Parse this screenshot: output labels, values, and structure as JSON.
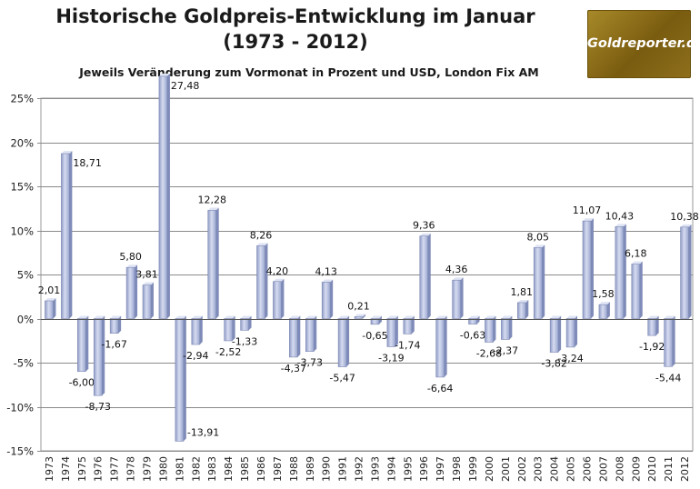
{
  "header": {
    "title_line1": "Historische Goldpreis-Entwicklung im Januar",
    "title_line2": "(1973 - 2012)",
    "subtitle": "Jeweils Veränderung zum Vormonat in Prozent und USD, London Fix AM",
    "logo_text": "Goldreporter.de"
  },
  "colors": {
    "bar_fill": "#b4bee0",
    "bar_edge": "#7d89b3",
    "logo_bg": "#8d6f1d"
  },
  "chart_data": {
    "type": "bar",
    "title": "Historische Goldpreis-Entwicklung im Januar (1973 - 2012)",
    "subtitle": "Jeweils Veränderung zum Vormonat in Prozent und USD, London Fix AM",
    "xlabel": "",
    "ylabel": "",
    "ylim": [
      -15,
      25
    ],
    "yticks": [
      -15,
      -10,
      -5,
      0,
      5,
      10,
      15,
      20,
      25
    ],
    "ytick_labels": [
      "-15%",
      "-10%",
      "-5%",
      "0%",
      "5%",
      "10%",
      "15%",
      "20%",
      "25%"
    ],
    "grid": true,
    "legend": "none",
    "categories": [
      "1973",
      "1974",
      "1975",
      "1976",
      "1977",
      "1978",
      "1979",
      "1980",
      "1981",
      "1982",
      "1983",
      "1984",
      "1985",
      "1986",
      "1987",
      "1988",
      "1989",
      "1990",
      "1991",
      "1992",
      "1993",
      "1994",
      "1995",
      "1996",
      "1997",
      "1998",
      "1999",
      "2000",
      "2001",
      "2002",
      "2003",
      "2004",
      "2005",
      "2006",
      "2007",
      "2008",
      "2009",
      "2010",
      "2011",
      "2012"
    ],
    "values": [
      2.01,
      18.71,
      -6.0,
      -8.73,
      -1.67,
      5.8,
      3.81,
      27.48,
      -13.91,
      -2.94,
      12.28,
      -2.52,
      -1.33,
      8.26,
      4.2,
      -4.37,
      -3.73,
      4.13,
      -5.47,
      0.21,
      -0.65,
      -3.19,
      -1.74,
      9.36,
      -6.64,
      4.36,
      -0.63,
      -2.68,
      -2.37,
      1.81,
      8.05,
      -3.82,
      -3.24,
      11.07,
      1.58,
      10.43,
      6.18,
      -1.92,
      -5.44,
      10.38
    ],
    "data_labels": [
      "2,01",
      "18,71",
      "-6,00",
      "-8,73",
      "-1,67",
      "5,80",
      "3,81",
      "27,48",
      "-13,91",
      "-2,94",
      "12,28",
      "-2,52",
      "-1,33",
      "8,26",
      "4,20",
      "-4,37",
      "-3,73",
      "4,13",
      "-5,47",
      "0,21",
      "-0,65",
      "-3,19",
      "-1,74",
      "9,36",
      "-6,64",
      "4,36",
      "-0,63",
      "-2,68",
      "-2,37",
      "1,81",
      "8,05",
      "-3,82",
      "-3,24",
      "11,07",
      "1,58",
      "10,43",
      "6,18",
      "-1,92",
      "-5,44",
      "10,38"
    ]
  }
}
